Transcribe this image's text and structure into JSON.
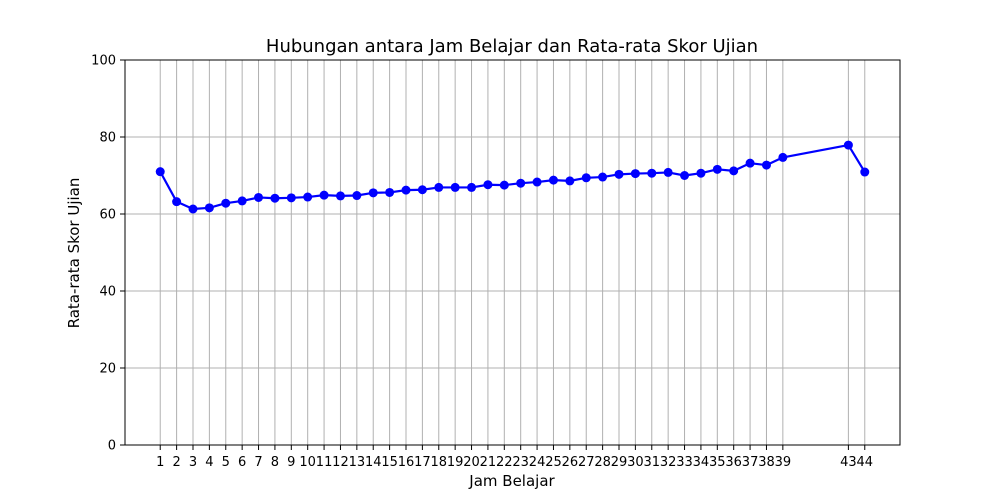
{
  "chart_data": {
    "type": "line",
    "title": "Hubungan antara Jam Belajar dan Rata-rata Skor Ujian",
    "xlabel": "Jam Belajar",
    "ylabel": "Rata-rata Skor Ujian",
    "ylim": [
      0,
      100
    ],
    "yticks": [
      0,
      20,
      40,
      60,
      80,
      100
    ],
    "xticks": [
      1,
      2,
      3,
      4,
      5,
      6,
      7,
      8,
      9,
      10,
      11,
      12,
      13,
      14,
      15,
      16,
      17,
      18,
      19,
      20,
      21,
      22,
      23,
      24,
      25,
      26,
      27,
      28,
      29,
      30,
      31,
      32,
      33,
      34,
      35,
      36,
      37,
      38,
      39,
      43,
      44
    ],
    "grid": true,
    "series": [
      {
        "color": "#0000ff",
        "x": [
          1,
          2,
          3,
          4,
          5,
          6,
          7,
          8,
          9,
          10,
          11,
          12,
          13,
          14,
          15,
          16,
          17,
          18,
          19,
          20,
          21,
          22,
          23,
          24,
          25,
          26,
          27,
          28,
          29,
          30,
          31,
          32,
          33,
          34,
          35,
          36,
          37,
          38,
          39,
          43,
          44
        ],
        "values": [
          71.0,
          63.2,
          61.3,
          61.6,
          62.8,
          63.4,
          64.3,
          64.1,
          64.2,
          64.4,
          64.9,
          64.7,
          64.8,
          65.5,
          65.6,
          66.2,
          66.3,
          66.9,
          66.9,
          66.9,
          67.6,
          67.5,
          68.0,
          68.3,
          68.8,
          68.6,
          69.4,
          69.6,
          70.3,
          70.5,
          70.6,
          70.8,
          70.0,
          70.6,
          71.6,
          71.2,
          73.2,
          72.7,
          74.7,
          77.9,
          70.9
        ]
      }
    ]
  }
}
